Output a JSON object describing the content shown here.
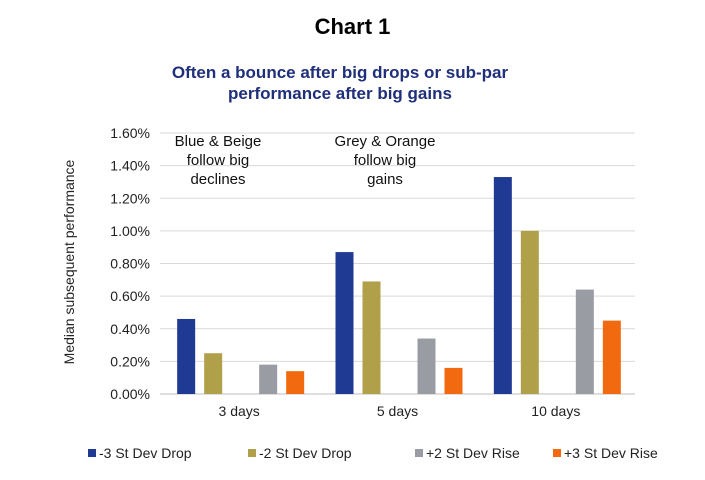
{
  "chart_data": {
    "type": "bar",
    "title": "Chart 1",
    "subtitle_lines": [
      "Often a bounce after big drops or sub-par",
      "performance after big gains"
    ],
    "xlabel": "",
    "ylabel": "Median subsequent performance",
    "categories": [
      "3 days",
      "5 days",
      "10 days"
    ],
    "yticks": [
      "0.00%",
      "0.20%",
      "0.40%",
      "0.60%",
      "0.80%",
      "1.00%",
      "1.20%",
      "1.40%",
      "1.60%"
    ],
    "ylim": [
      0,
      1.6
    ],
    "grid": true,
    "legend_position": "bottom",
    "series": [
      {
        "name": "-3 St Dev Drop",
        "color": "#1f3a93",
        "values": [
          0.46,
          0.87,
          1.33
        ]
      },
      {
        "name": "-2 St Dev Drop",
        "color": "#b1a04a",
        "values": [
          0.25,
          0.69,
          1.0
        ]
      },
      {
        "name": "+2 St Dev Rise",
        "color": "#9a9ca3",
        "values": [
          0.18,
          0.34,
          0.64
        ]
      },
      {
        "name": "+3 St Dev Rise",
        "color": "#f26a10",
        "values": [
          0.14,
          0.16,
          0.45
        ]
      }
    ],
    "annotations": [
      {
        "lines": [
          "Blue & Beige",
          "follow big",
          "declines"
        ]
      },
      {
        "lines": [
          "Grey & Orange",
          "follow big",
          "gains"
        ]
      }
    ]
  }
}
